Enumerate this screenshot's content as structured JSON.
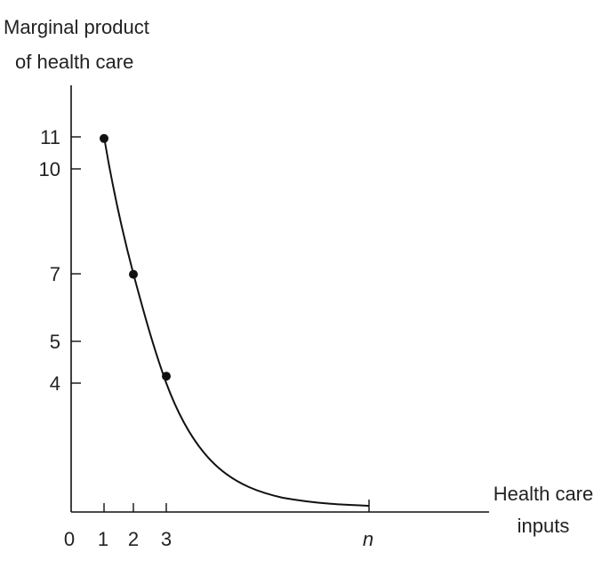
{
  "chart_data": {
    "type": "line",
    "title": "",
    "ylabel_lines": [
      "Marginal product",
      "of health care"
    ],
    "xlabel_lines": [
      "Health care",
      "inputs"
    ],
    "x_ticks": [
      "0",
      "1",
      "2",
      "3",
      "n"
    ],
    "y_ticks": [
      "11",
      "10",
      "7",
      "5",
      "4"
    ],
    "series": [
      {
        "points": [
          {
            "x": "1",
            "y": 11
          },
          {
            "x": "2",
            "y": 7
          },
          {
            "x": "3",
            "y": 4
          }
        ],
        "curve_end": {
          "x": "n",
          "y": 0
        }
      }
    ],
    "grid": false,
    "legend": "none",
    "colors": {
      "line": "#111111",
      "text": "#222222"
    }
  }
}
